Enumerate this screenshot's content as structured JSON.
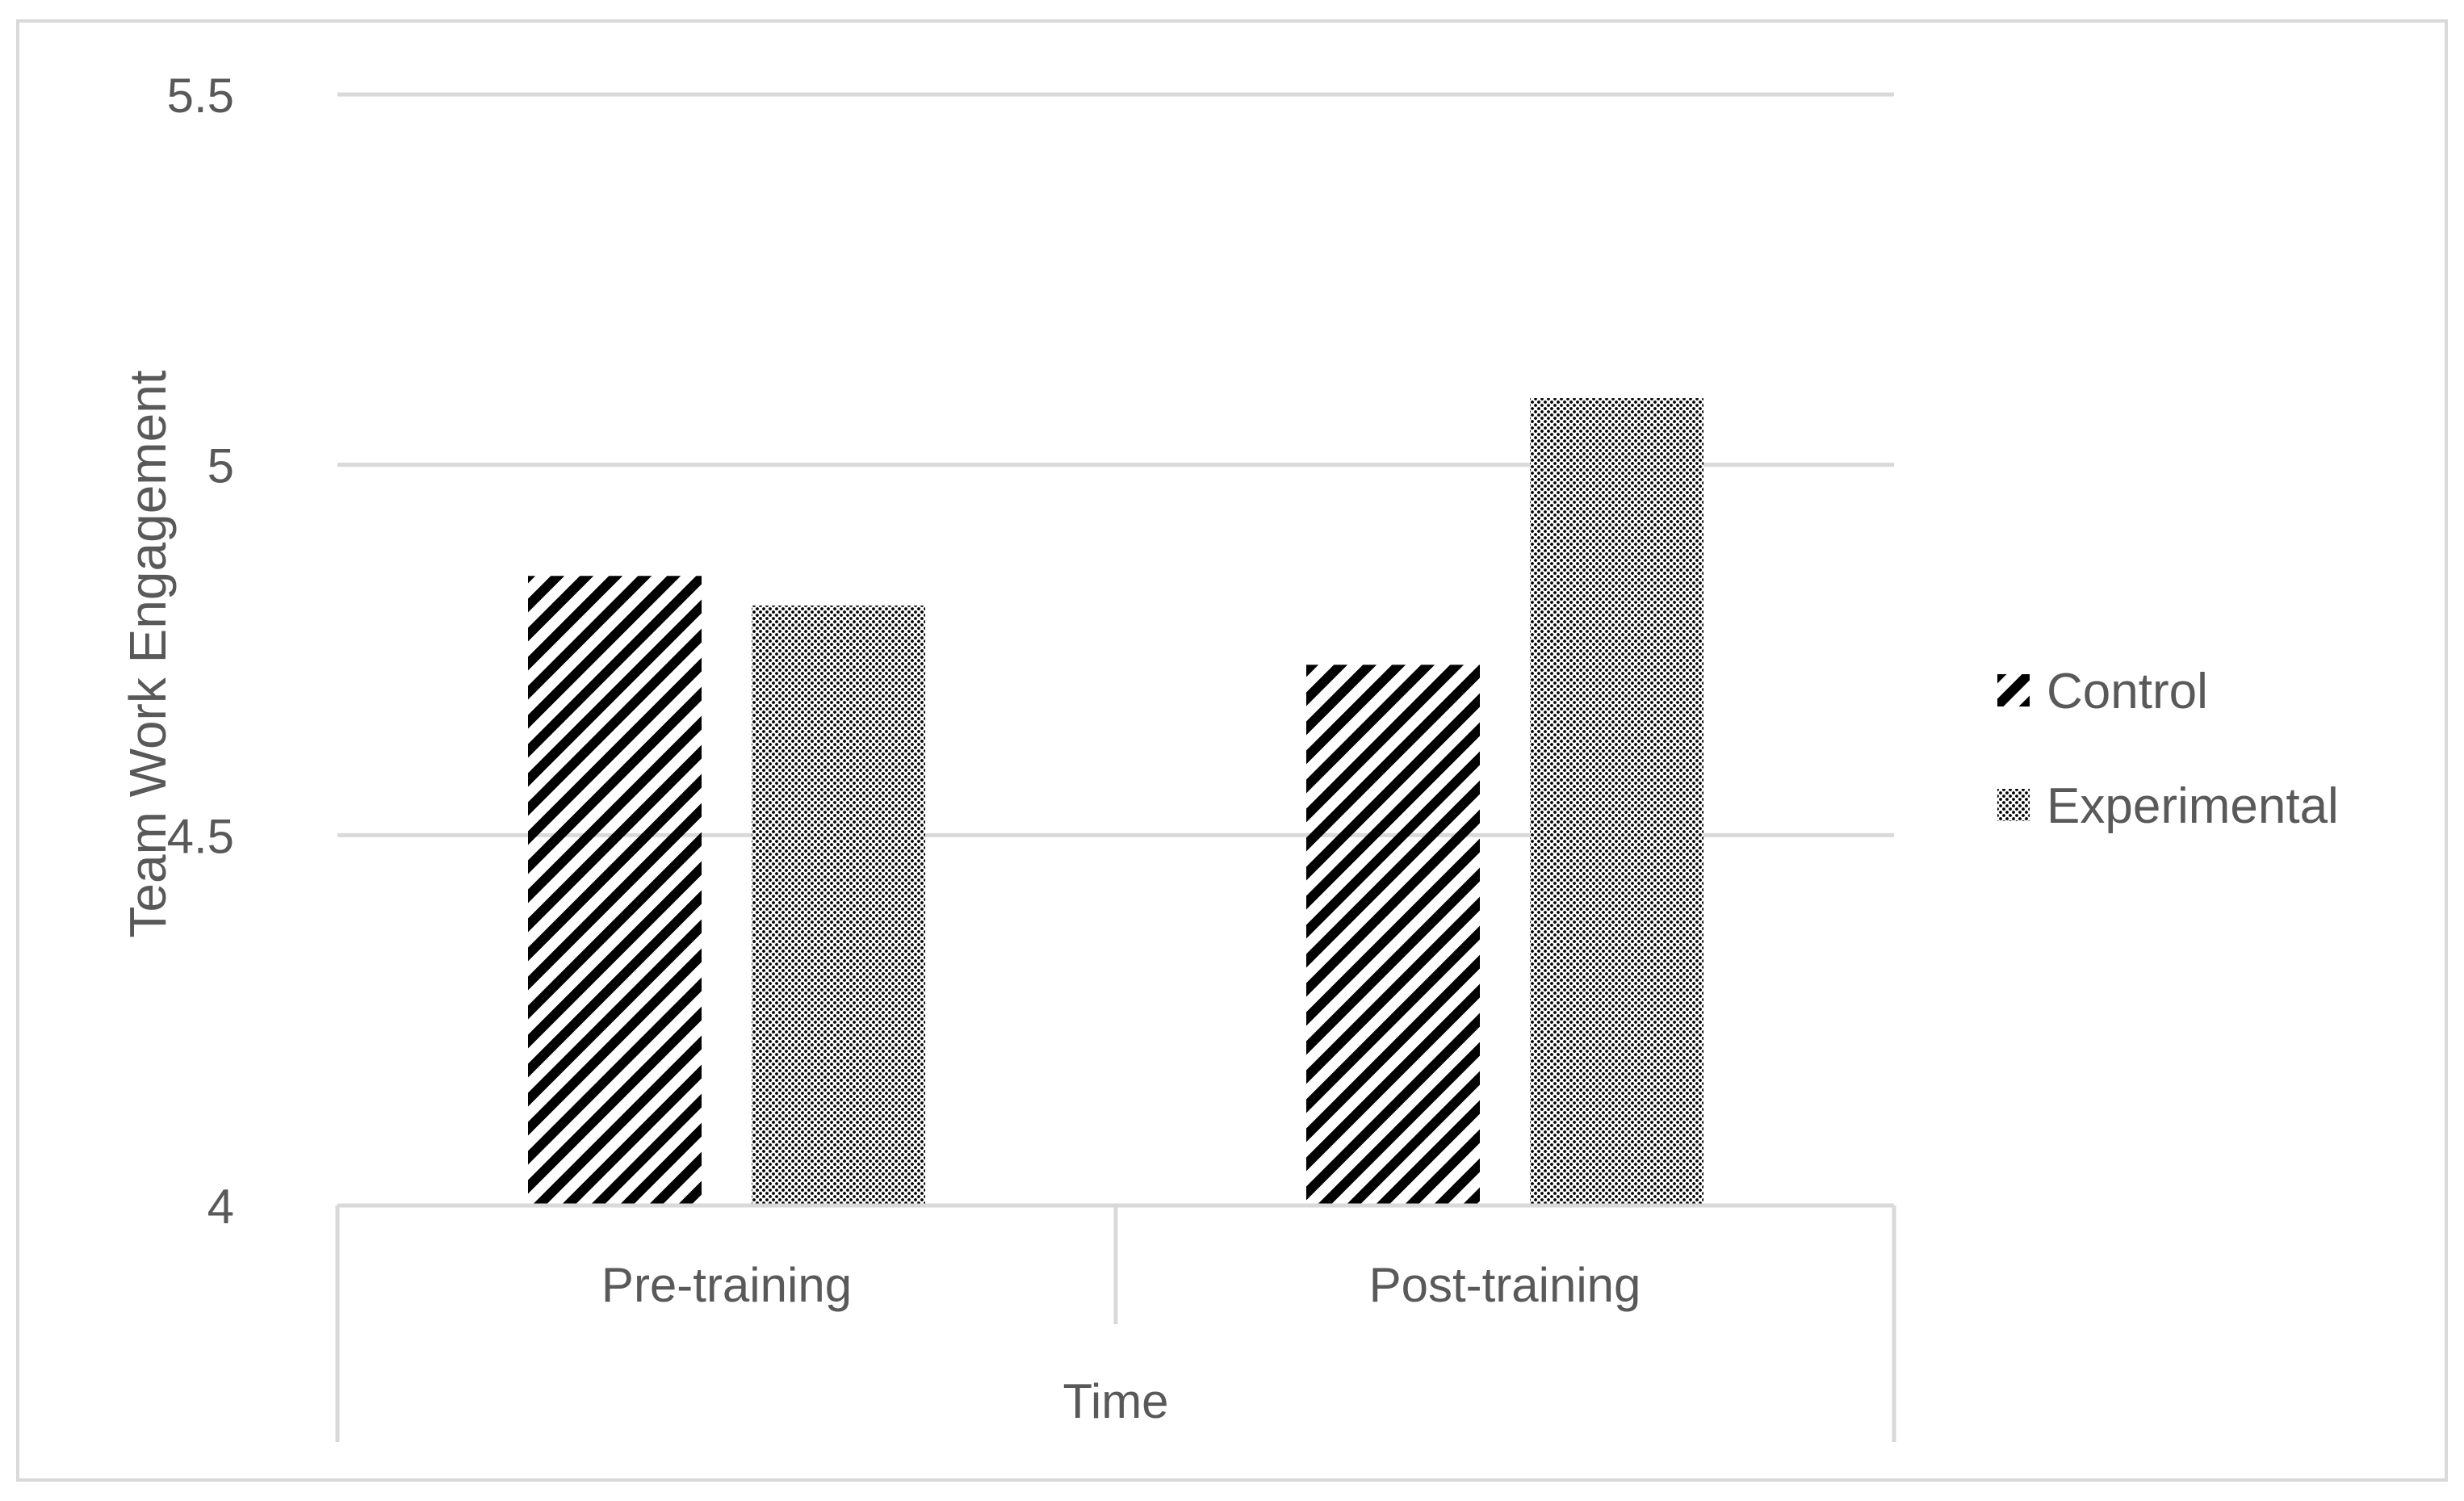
{
  "chart_data": {
    "type": "bar",
    "title": "",
    "xlabel": "Time",
    "ylabel": "Team Work Engagement",
    "categories": [
      "Pre-training",
      "Post-training"
    ],
    "series": [
      {
        "name": "Control",
        "values": [
          4.85,
          4.73
        ],
        "pattern": "diagonal-stripes"
      },
      {
        "name": "Experimental",
        "values": [
          4.81,
          5.09
        ],
        "pattern": "dots"
      }
    ],
    "ylim": [
      4,
      5.5
    ],
    "yticks": [
      "4",
      "4.5",
      "5",
      "5.5"
    ],
    "grid": true,
    "legend_position": "right",
    "colors": {
      "axis_text": "#595959",
      "gridline": "#d9d9d9",
      "border": "#d9d9d9",
      "bar": "#000000"
    }
  }
}
